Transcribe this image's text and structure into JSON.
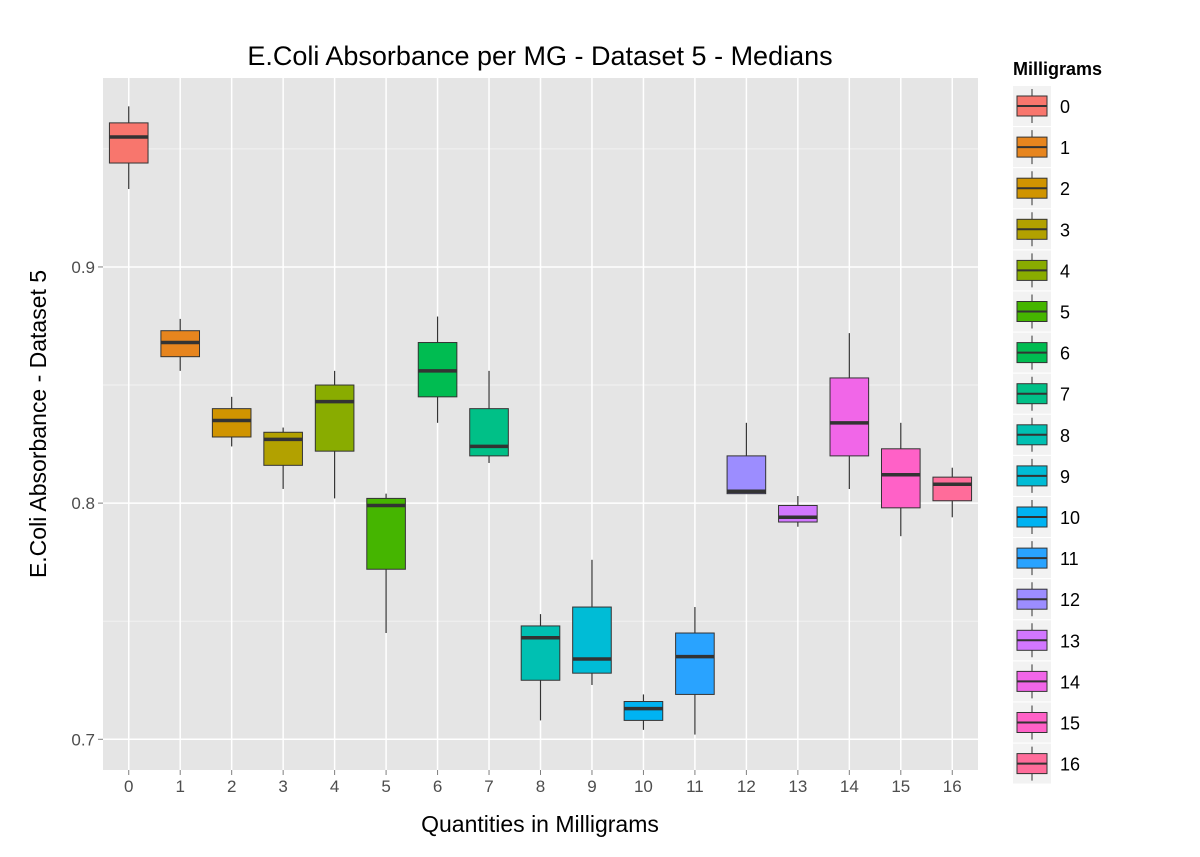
{
  "chart_data": {
    "type": "boxplot",
    "title": "E.Coli Absorbance per MG - Dataset 5 - Medians",
    "xlabel": "Quantities in Milligrams",
    "ylabel": "E.Coli Absorbance - Dataset 5",
    "ylim": [
      0.687,
      0.98
    ],
    "yticks": [
      "0.7",
      "0.8",
      "0.9"
    ],
    "grid": true,
    "legend": {
      "title": "Milligrams",
      "placement": "right"
    },
    "categories": [
      "0",
      "1",
      "2",
      "3",
      "4",
      "5",
      "6",
      "7",
      "8",
      "9",
      "10",
      "11",
      "12",
      "13",
      "14",
      "15",
      "16"
    ],
    "colors": [
      "#F8766D",
      "#E7851E",
      "#D09400",
      "#B2A100",
      "#89AC00",
      "#45B500",
      "#00BC51",
      "#00C087",
      "#00C0B2",
      "#00BCD6",
      "#00B3F2",
      "#29A3FF",
      "#9C8DFF",
      "#D277FF",
      "#F166E8",
      "#FF61C7",
      "#FF6C9A"
    ],
    "boxes": [
      {
        "min": 0.933,
        "q1": 0.944,
        "median": 0.955,
        "q3": 0.961,
        "max": 0.968
      },
      {
        "min": 0.856,
        "q1": 0.862,
        "median": 0.868,
        "q3": 0.873,
        "max": 0.878
      },
      {
        "min": 0.824,
        "q1": 0.828,
        "median": 0.835,
        "q3": 0.84,
        "max": 0.845
      },
      {
        "min": 0.806,
        "q1": 0.816,
        "median": 0.827,
        "q3": 0.83,
        "max": 0.832
      },
      {
        "min": 0.802,
        "q1": 0.822,
        "median": 0.843,
        "q3": 0.85,
        "max": 0.856
      },
      {
        "min": 0.745,
        "q1": 0.772,
        "median": 0.799,
        "q3": 0.802,
        "max": 0.804
      },
      {
        "min": 0.834,
        "q1": 0.845,
        "median": 0.856,
        "q3": 0.868,
        "max": 0.879
      },
      {
        "min": 0.817,
        "q1": 0.82,
        "median": 0.824,
        "q3": 0.84,
        "max": 0.856
      },
      {
        "min": 0.708,
        "q1": 0.725,
        "median": 0.743,
        "q3": 0.748,
        "max": 0.753
      },
      {
        "min": 0.723,
        "q1": 0.728,
        "median": 0.734,
        "q3": 0.756,
        "max": 0.776
      },
      {
        "min": 0.704,
        "q1": 0.708,
        "median": 0.713,
        "q3": 0.716,
        "max": 0.719
      },
      {
        "min": 0.702,
        "q1": 0.719,
        "median": 0.735,
        "q3": 0.745,
        "max": 0.756
      },
      {
        "min": 0.804,
        "q1": 0.804,
        "median": 0.805,
        "q3": 0.82,
        "max": 0.834
      },
      {
        "min": 0.79,
        "q1": 0.792,
        "median": 0.794,
        "q3": 0.799,
        "max": 0.803
      },
      {
        "min": 0.806,
        "q1": 0.82,
        "median": 0.834,
        "q3": 0.853,
        "max": 0.872
      },
      {
        "min": 0.786,
        "q1": 0.798,
        "median": 0.812,
        "q3": 0.823,
        "max": 0.834
      },
      {
        "min": 0.794,
        "q1": 0.801,
        "median": 0.808,
        "q3": 0.811,
        "max": 0.815
      }
    ]
  }
}
